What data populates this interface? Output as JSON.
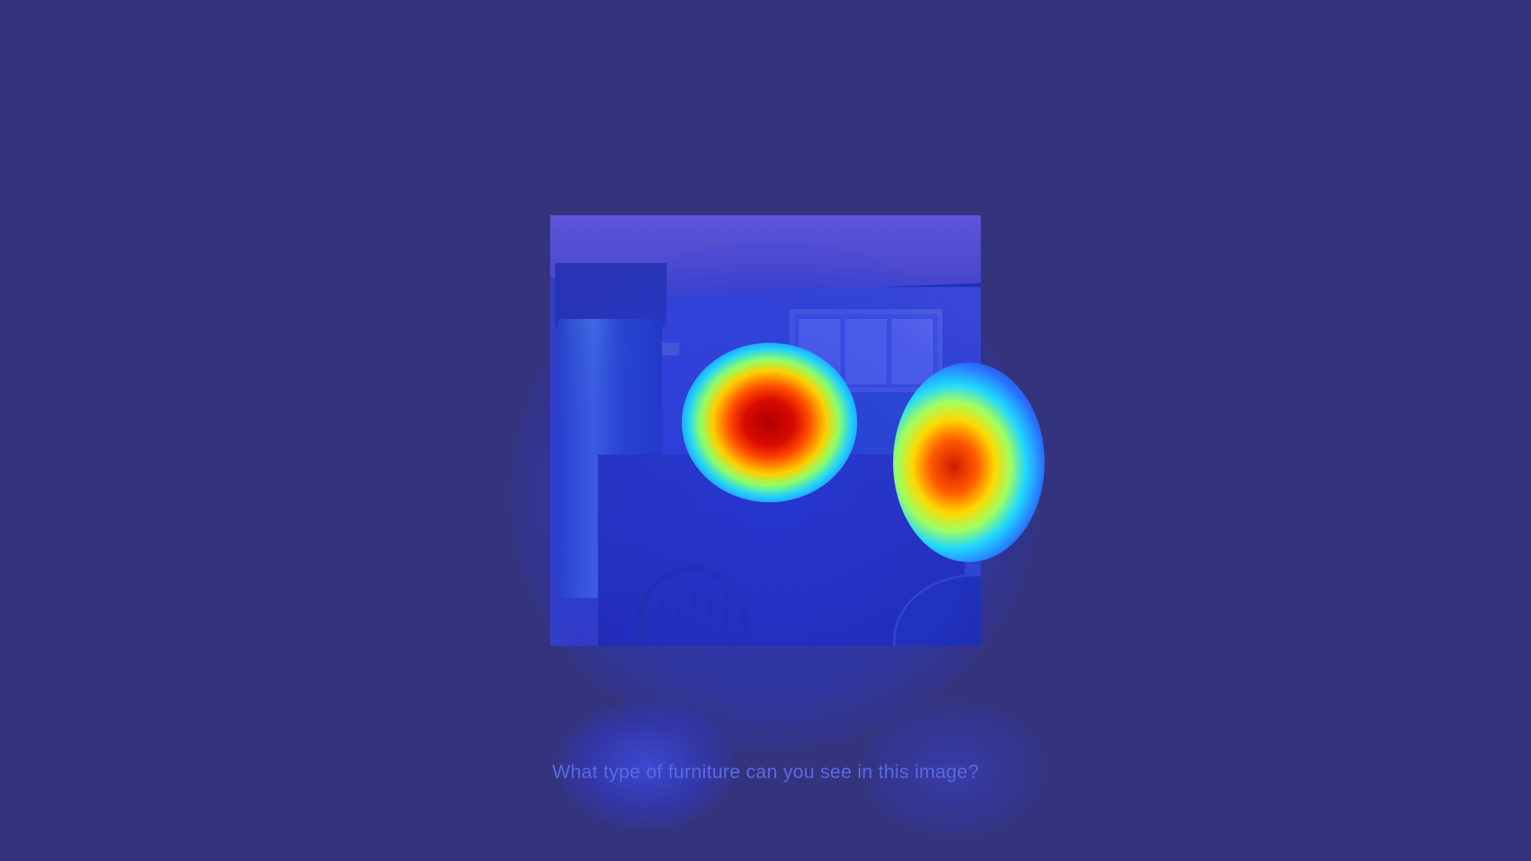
{
  "question": {
    "text": "What type of furniture can you see in this image?"
  },
  "photo": {
    "subject": "living room with refrigerator, sofa, window, wooden chair and round table"
  },
  "heatmap": {
    "regions": [
      {
        "name": "sofa-cushions",
        "intensity": 1.0
      },
      {
        "name": "right-edge-object",
        "intensity": 0.85
      }
    ]
  },
  "colors": {
    "background": "#34337e",
    "question_text": "#5a6ae0",
    "heat_peak": "#d80a00"
  }
}
